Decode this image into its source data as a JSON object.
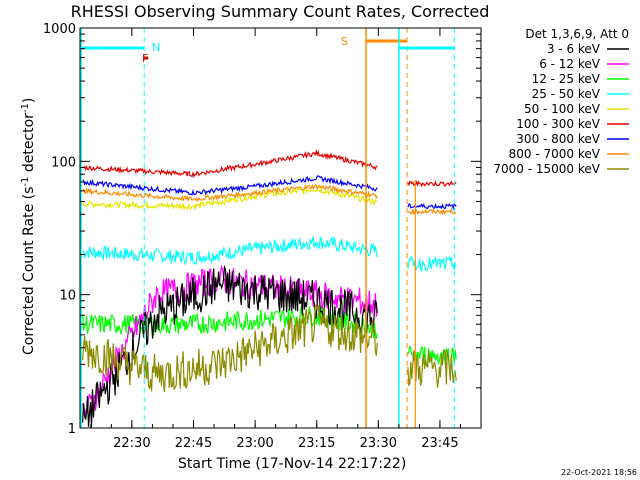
{
  "chart_data": {
    "type": "line",
    "title": "RHESSI Observing Summary Count Rates, Corrected",
    "xlabel": "Start Time (17-Nov-14 22:17:22)",
    "ylabel_main": "Corrected Count Rate (s",
    "ylabel_sup1": "-1",
    "ylabel_mid": " detector",
    "ylabel_sup2": "-1",
    "ylabel_end": ")",
    "y_scale": "log",
    "ylim": [
      1,
      1000
    ],
    "xlim": [
      "22:17:22",
      "23:55:00"
    ],
    "x_ticks": [
      "22:30",
      "22:45",
      "23:00",
      "23:15",
      "23:30",
      "23:45"
    ],
    "y_ticks": [
      "1",
      "10",
      "100",
      "1000"
    ],
    "legend_title": "Det 1,3,6,9, Att 0",
    "legend_position": "right",
    "series": [
      {
        "name": "3 - 6 keV",
        "color": "#000000"
      },
      {
        "name": "6 - 12 keV",
        "color": "#ff00ff"
      },
      {
        "name": "12 - 25 keV",
        "color": "#00ff00"
      },
      {
        "name": "25 - 50 keV",
        "color": "#00ffff"
      },
      {
        "name": "50 - 100 keV",
        "color": "#e6e600"
      },
      {
        "name": "100 - 300 keV",
        "color": "#e60000"
      },
      {
        "name": "300 - 800 keV",
        "color": "#0000ff"
      },
      {
        "name": "800 - 7000 keV",
        "color": "#ff8c00"
      },
      {
        "name": "7000 - 15000 keV",
        "color": "#8b8b00"
      }
    ],
    "series_levels": {
      "25 - 50 keV": [
        [
          22.3,
          21
        ],
        [
          22.75,
          19
        ],
        [
          23.0,
          22
        ],
        [
          23.25,
          25
        ],
        [
          23.5,
          21
        ]
      ],
      "50 - 100 keV": [
        [
          22.3,
          48
        ],
        [
          22.75,
          46
        ],
        [
          23.0,
          55
        ],
        [
          23.25,
          62
        ],
        [
          23.5,
          49
        ]
      ],
      "100 - 300 keV": [
        [
          22.3,
          90
        ],
        [
          22.75,
          80
        ],
        [
          23.0,
          95
        ],
        [
          23.25,
          115
        ],
        [
          23.5,
          90
        ]
      ],
      "300 - 800 keV": [
        [
          22.3,
          70
        ],
        [
          22.75,
          58
        ],
        [
          23.0,
          65
        ],
        [
          23.25,
          75
        ],
        [
          23.5,
          62
        ]
      ],
      "800 - 7000 keV": [
        [
          22.3,
          60
        ],
        [
          22.75,
          52
        ],
        [
          23.0,
          58
        ],
        [
          23.25,
          65
        ],
        [
          23.5,
          55
        ]
      ],
      "12 - 25 keV": [
        [
          22.3,
          6
        ],
        [
          22.75,
          6
        ],
        [
          23.0,
          6.5
        ],
        [
          23.25,
          7
        ],
        [
          23.5,
          5.5
        ]
      ],
      "6 - 12 keV": [
        [
          22.3,
          1.2
        ],
        [
          22.6,
          10
        ],
        [
          22.85,
          13
        ],
        [
          23.25,
          10
        ],
        [
          23.5,
          8.5
        ]
      ],
      "3 - 6 keV": [
        [
          22.3,
          1.1
        ],
        [
          22.6,
          7
        ],
        [
          22.85,
          12
        ],
        [
          23.25,
          9
        ],
        [
          23.5,
          6.5
        ]
      ],
      "7000 - 15000 keV": [
        [
          22.3,
          4
        ],
        [
          22.6,
          2.5
        ],
        [
          22.85,
          3
        ],
        [
          23.25,
          6
        ],
        [
          23.5,
          4.5
        ]
      ]
    },
    "series_levels_after_gap": {
      "100 - 300 keV": 68,
      "300 - 800 keV": 46,
      "800 - 7000 keV": 42,
      "25 - 50 keV": 17,
      "12 - 25 keV": 3.5,
      "7000 - 15000 keV": 2.8
    },
    "annotations": {
      "flag_N": "N",
      "flag_F": "F",
      "flag_S": "S"
    },
    "timestamp": "22-Oct-2021 18:56"
  }
}
